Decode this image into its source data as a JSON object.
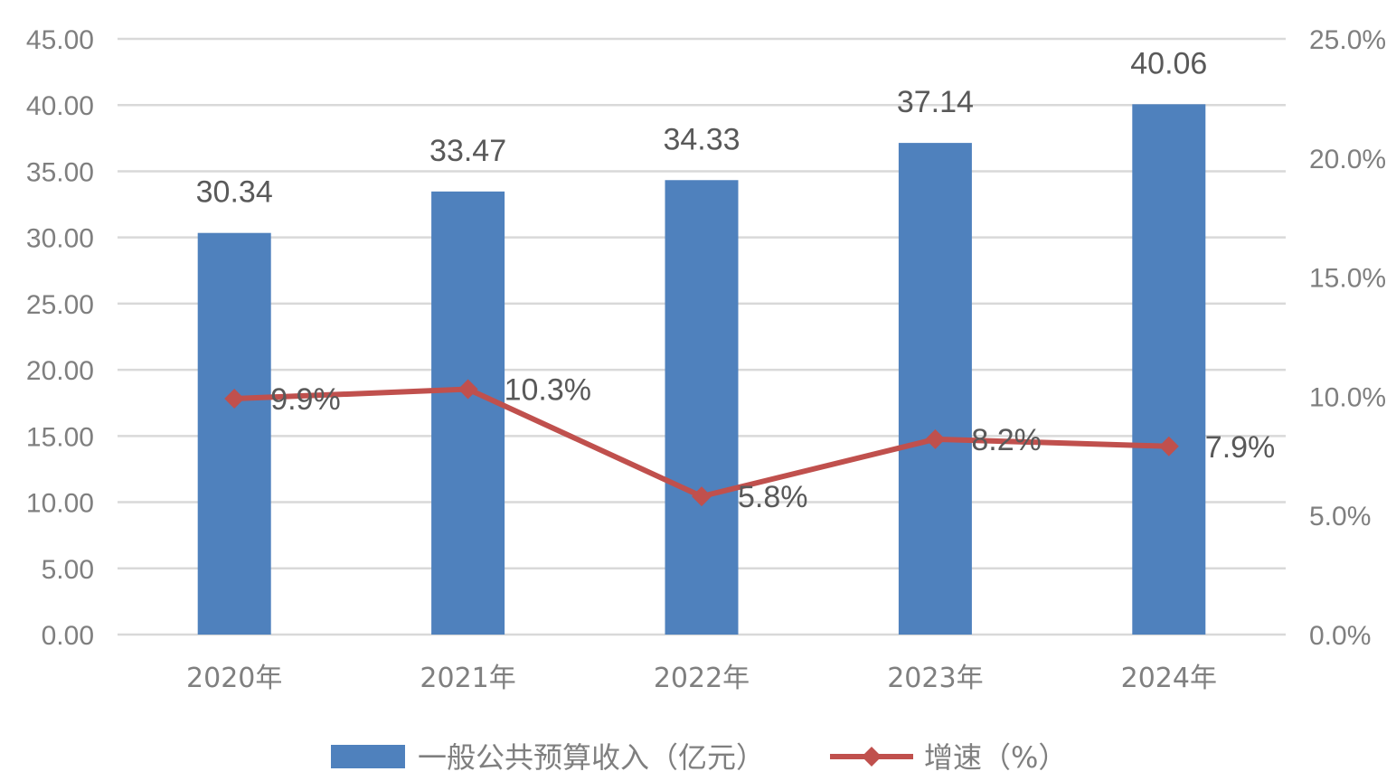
{
  "chart_data": {
    "type": "bar",
    "categories": [
      "2020年",
      "2021年",
      "2022年",
      "2023年",
      "2024年"
    ],
    "series": [
      {
        "name": "一般公共预算收入（亿元）",
        "type": "bar",
        "axis": "left",
        "values": [
          30.34,
          33.47,
          34.33,
          37.14,
          40.06
        ],
        "labels": [
          "30.34",
          "33.47",
          "34.33",
          "37.14",
          "40.06"
        ],
        "color": "#4f81bd"
      },
      {
        "name": "增速（%）",
        "type": "line",
        "axis": "right",
        "marker": "diamond",
        "values": [
          9.9,
          10.3,
          5.8,
          8.2,
          7.9
        ],
        "labels": [
          "9.9%",
          "10.3%",
          "5.8%",
          "8.2%",
          "7.9%"
        ],
        "color": "#c0504d"
      }
    ],
    "y_left": {
      "range": [
        0,
        45
      ],
      "ticks": [
        "0.00",
        "5.00",
        "10.00",
        "15.00",
        "20.00",
        "25.00",
        "30.00",
        "35.00",
        "40.00",
        "45.00"
      ]
    },
    "y_right": {
      "range": [
        0,
        25
      ],
      "ticks": [
        "0.0%",
        "5.0%",
        "10.0%",
        "15.0%",
        "20.0%",
        "25.0%"
      ]
    },
    "grid": true,
    "legend": "bottom"
  }
}
